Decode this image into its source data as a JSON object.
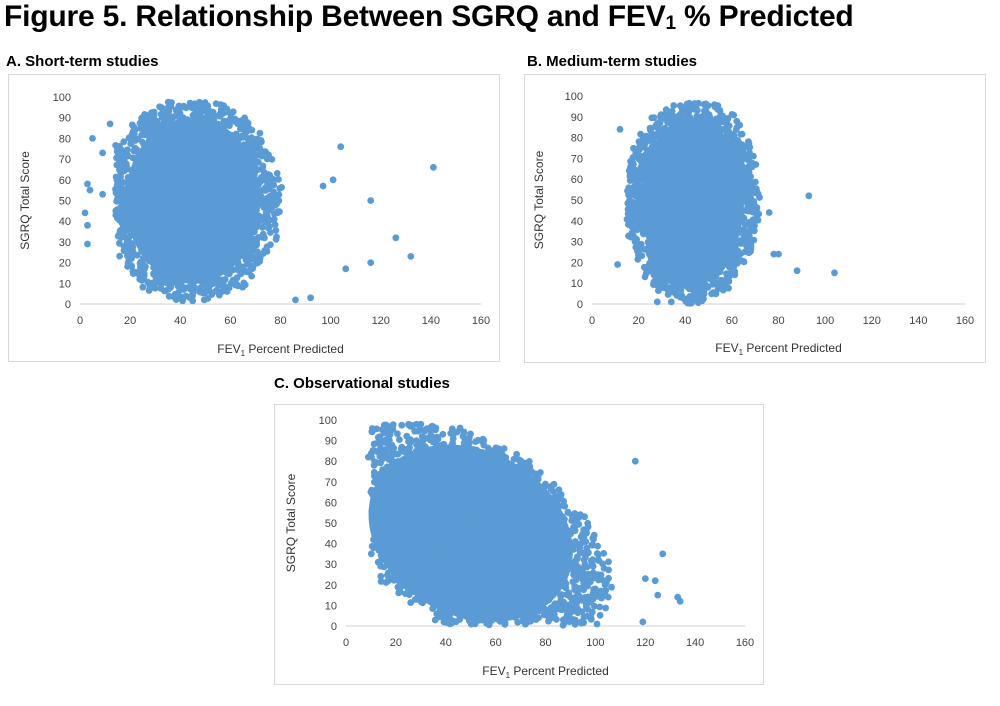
{
  "figure": {
    "title_main": "Figure 5. Relationship Between SGRQ and FEV",
    "title_sub": "1",
    "title_end": " % Predicted"
  },
  "colors": {
    "marker": "#5b9bd5",
    "axis": "#d0d0d0",
    "tick_text": "#444444"
  },
  "chart_data": [
    {
      "id": "A",
      "panel_title": "A. Short-term studies",
      "type": "scatter",
      "xlabel": "FEV",
      "xlabel_sub": "1",
      "xlabel_end": " Percent Predicted",
      "ylabel": "SGRQ Total Score",
      "xlim": [
        0,
        160
      ],
      "ylim": [
        0,
        100
      ],
      "xticks": [
        0,
        20,
        40,
        60,
        80,
        100,
        120,
        140,
        160
      ],
      "yticks": [
        0,
        10,
        20,
        30,
        40,
        50,
        60,
        70,
        80,
        90,
        100
      ],
      "grid": false,
      "dense_region": {
        "x_range": [
          14,
          83
        ],
        "y_range": [
          0,
          98
        ],
        "center": [
          45,
          50
        ]
      },
      "outliers": [
        [
          3,
          58
        ],
        [
          4,
          55
        ],
        [
          2,
          44
        ],
        [
          3,
          38
        ],
        [
          3,
          29
        ],
        [
          5,
          80
        ],
        [
          9,
          53
        ],
        [
          97,
          57
        ],
        [
          101,
          60
        ],
        [
          104,
          76
        ],
        [
          116,
          50
        ],
        [
          106,
          17
        ],
        [
          116,
          20
        ],
        [
          126,
          32
        ],
        [
          132,
          23
        ],
        [
          141,
          66
        ],
        [
          92,
          3
        ],
        [
          86,
          2
        ],
        [
          9,
          73
        ],
        [
          12,
          87
        ]
      ]
    },
    {
      "id": "B",
      "panel_title": "B. Medium-term studies",
      "type": "scatter",
      "xlabel": "FEV",
      "xlabel_sub": "1",
      "xlabel_end": "  Percent Predicted",
      "ylabel": "SGRQ Total Score",
      "xlim": [
        0,
        160
      ],
      "ylim": [
        0,
        100
      ],
      "xticks": [
        0,
        20,
        40,
        60,
        80,
        100,
        120,
        140,
        160
      ],
      "yticks": [
        0,
        10,
        20,
        30,
        40,
        50,
        60,
        70,
        80,
        90,
        100
      ],
      "grid": false,
      "dense_region": {
        "x_range": [
          15,
          72
        ],
        "y_range": [
          0,
          97
        ],
        "center": [
          43,
          50
        ]
      },
      "outliers": [
        [
          11,
          19
        ],
        [
          12,
          84
        ],
        [
          78,
          24
        ],
        [
          80,
          24
        ],
        [
          88,
          16
        ],
        [
          93,
          52
        ],
        [
          104,
          15
        ],
        [
          28,
          1
        ],
        [
          34,
          1
        ],
        [
          76,
          44
        ]
      ]
    },
    {
      "id": "C",
      "panel_title": "C. Observational studies",
      "type": "scatter",
      "xlabel": "FEV",
      "xlabel_sub": "1",
      "xlabel_end": " Percent Predicted",
      "ylabel": "SGRQ Total Score",
      "xlim": [
        0,
        160
      ],
      "ylim": [
        0,
        100
      ],
      "xticks": [
        0,
        20,
        40,
        60,
        80,
        100,
        120,
        140,
        160
      ],
      "yticks": [
        0,
        10,
        20,
        30,
        40,
        50,
        60,
        70,
        80,
        90,
        100
      ],
      "grid": false,
      "dense_region": {
        "x_range": [
          10,
          120
        ],
        "y_range": [
          0,
          98
        ],
        "center": [
          50,
          45
        ]
      },
      "outliers": [
        [
          116,
          80
        ],
        [
          127,
          35
        ],
        [
          133,
          14
        ],
        [
          134,
          12
        ],
        [
          124,
          22
        ],
        [
          120,
          23
        ],
        [
          125,
          15
        ],
        [
          119,
          2
        ],
        [
          9,
          82
        ],
        [
          10,
          65
        ],
        [
          30,
          98
        ]
      ]
    }
  ]
}
